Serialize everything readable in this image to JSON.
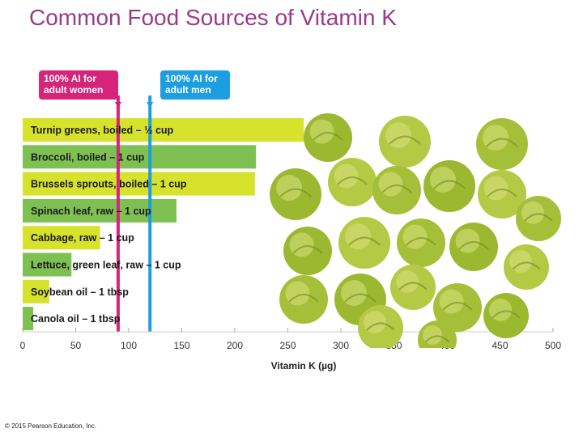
{
  "title": "Common Food Sources of Vitamin K",
  "copyright": "© 2015 Pearson Education, Inc.",
  "colors": {
    "title": "#9b3a8a",
    "bar_green": "#7ec152",
    "bar_lime": "#d7e22c",
    "women_line": "#d6247a",
    "men_line": "#1d9ee0",
    "sprout": "#a9c23a"
  },
  "picture": {
    "icon": "brussels-sprouts-photo"
  },
  "chart_data": {
    "type": "bar",
    "orientation": "horizontal",
    "xlabel": "Vitamin K (µg)",
    "xlim": [
      0,
      500
    ],
    "xticks": [
      0,
      50,
      100,
      150,
      200,
      250,
      300,
      350,
      400,
      450,
      500
    ],
    "categories": [
      "Turnip greens, boiled – ½ cup",
      "Broccoli, boiled – 1 cup",
      "Brussels sprouts, boiled – 1 cup",
      "Spinach leaf, raw – 1 cup",
      "Cabbage, raw – 1 cup",
      "Lettuce, green leaf, raw – 1 cup",
      "Soybean oil – 1 tbsp",
      "Canola oil – 1 tbsp"
    ],
    "values": [
      265,
      220,
      219,
      145,
      73,
      46,
      25,
      10
    ],
    "bar_colors": [
      "#d7e22c",
      "#7ec152",
      "#d7e22c",
      "#7ec152",
      "#d7e22c",
      "#7ec152",
      "#d7e22c",
      "#7ec152"
    ],
    "reference_lines": [
      {
        "label": "100% AI for\nadult women",
        "value": 90,
        "color": "#d6247a"
      },
      {
        "label": "100% AI for\nadult men",
        "value": 120,
        "color": "#1d9ee0"
      }
    ]
  }
}
